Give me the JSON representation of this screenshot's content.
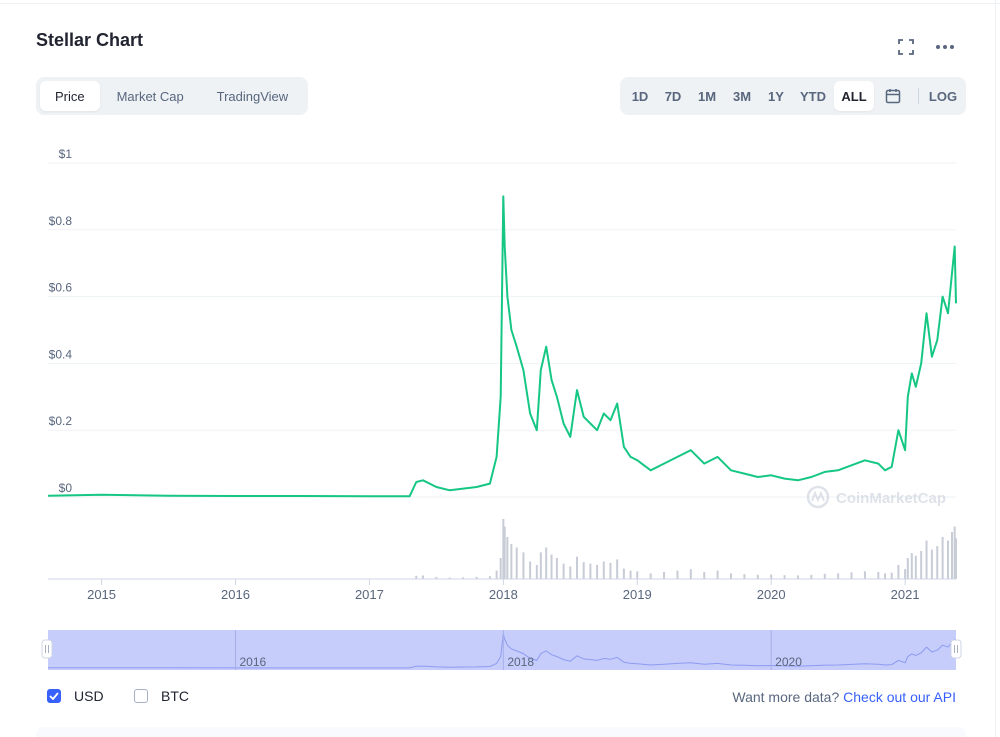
{
  "header": {
    "title": "Stellar Chart"
  },
  "icons": {
    "fullscreen": "fullscreen-icon",
    "more": "more-dots-icon",
    "calendar": "calendar-icon"
  },
  "tabs": [
    {
      "label": "Price",
      "active": true
    },
    {
      "label": "Market Cap",
      "active": false
    },
    {
      "label": "TradingView",
      "active": false
    }
  ],
  "ranges": [
    {
      "label": "1D",
      "active": false
    },
    {
      "label": "7D",
      "active": false
    },
    {
      "label": "1M",
      "active": false
    },
    {
      "label": "3M",
      "active": false
    },
    {
      "label": "1Y",
      "active": false
    },
    {
      "label": "YTD",
      "active": false
    },
    {
      "label": "ALL",
      "active": true
    }
  ],
  "log_label": "LOG",
  "watermark": "CoinMarketCap",
  "currency": {
    "usd": {
      "label": "USD",
      "checked": true
    },
    "btc": {
      "label": "BTC",
      "checked": false
    }
  },
  "footer": {
    "text": "Want more data?",
    "link": "Check out our API"
  },
  "colors": {
    "line": "#16c784",
    "accent": "#3861fb",
    "navigator": "#c6cdfb",
    "volume": "#c7ccd6"
  },
  "chart_data": {
    "type": "line",
    "title": "Stellar Chart",
    "series": [
      {
        "name": "USD"
      }
    ],
    "ylim": [
      0,
      1
    ],
    "y_ticks": [
      0,
      0.2,
      0.4,
      0.6,
      0.8,
      1
    ],
    "y_tick_labels": [
      "$0",
      "$0.2",
      "$0.4",
      "$0.6",
      "$0.8",
      "$1"
    ],
    "xlim": [
      2014.6,
      2021.38
    ],
    "x_ticks": [
      2015,
      2016,
      2017,
      2018,
      2019,
      2020,
      2021
    ],
    "x_tick_labels": [
      "2015",
      "2016",
      "2017",
      "2018",
      "2019",
      "2020",
      "2021"
    ],
    "navigator_ticks": [
      2016,
      2018,
      2020
    ],
    "navigator_tick_labels": [
      "2016",
      "2018",
      "2020"
    ],
    "grid": true,
    "x": [
      2014.6,
      2014.8,
      2015.0,
      2015.5,
      2016.0,
      2016.5,
      2017.0,
      2017.3,
      2017.35,
      2017.4,
      2017.5,
      2017.6,
      2017.7,
      2017.8,
      2017.9,
      2017.95,
      2017.98,
      2018.0,
      2018.01,
      2018.03,
      2018.06,
      2018.1,
      2018.15,
      2018.2,
      2018.25,
      2018.28,
      2018.32,
      2018.36,
      2018.4,
      2018.45,
      2018.5,
      2018.55,
      2018.6,
      2018.65,
      2018.7,
      2018.75,
      2018.8,
      2018.85,
      2018.9,
      2018.95,
      2019.0,
      2019.1,
      2019.2,
      2019.3,
      2019.4,
      2019.5,
      2019.6,
      2019.7,
      2019.8,
      2019.9,
      2020.0,
      2020.1,
      2020.2,
      2020.3,
      2020.4,
      2020.5,
      2020.6,
      2020.7,
      2020.8,
      2020.85,
      2020.9,
      2020.95,
      2021.0,
      2021.02,
      2021.05,
      2021.08,
      2021.12,
      2021.16,
      2021.2,
      2021.24,
      2021.28,
      2021.32,
      2021.35,
      2021.37,
      2021.38
    ],
    "y": [
      0.004,
      0.005,
      0.007,
      0.004,
      0.003,
      0.003,
      0.002,
      0.002,
      0.045,
      0.05,
      0.03,
      0.02,
      0.025,
      0.03,
      0.04,
      0.12,
      0.3,
      0.9,
      0.75,
      0.6,
      0.5,
      0.45,
      0.38,
      0.25,
      0.2,
      0.38,
      0.45,
      0.35,
      0.3,
      0.22,
      0.18,
      0.32,
      0.24,
      0.22,
      0.2,
      0.25,
      0.23,
      0.28,
      0.15,
      0.12,
      0.11,
      0.08,
      0.1,
      0.12,
      0.14,
      0.1,
      0.12,
      0.08,
      0.07,
      0.06,
      0.065,
      0.055,
      0.05,
      0.06,
      0.075,
      0.08,
      0.095,
      0.11,
      0.1,
      0.08,
      0.09,
      0.2,
      0.14,
      0.3,
      0.37,
      0.33,
      0.4,
      0.55,
      0.42,
      0.47,
      0.6,
      0.55,
      0.67,
      0.75,
      0.58
    ]
  }
}
